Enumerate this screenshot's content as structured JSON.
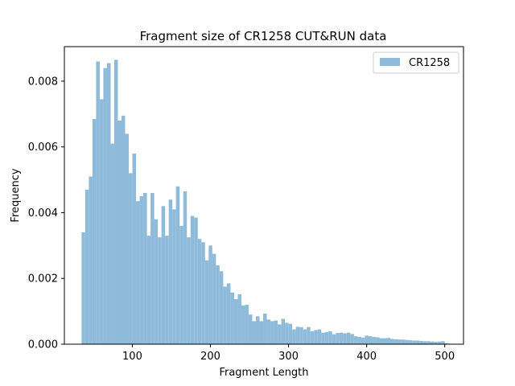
{
  "chart_data": {
    "type": "bar",
    "title": "Fragment size of CR1258 CUT&RUN data",
    "xlabel": "Fragment Length",
    "ylabel": "Frequency",
    "xlim": [
      13,
      524
    ],
    "ylim": [
      0,
      0.00905
    ],
    "xticks": [
      100,
      200,
      300,
      400,
      500
    ],
    "yticks": [
      0,
      0.002,
      0.004,
      0.006,
      0.008
    ],
    "ytick_labels": [
      "0.000",
      "0.002",
      "0.004",
      "0.006",
      "0.008"
    ],
    "bin_start": 35,
    "bin_width": 4.65,
    "legend_position": "top-right",
    "grid": false,
    "color": "#8fbbdb",
    "series": [
      {
        "name": "CR1258",
        "values": [
          0.0034,
          0.0047,
          0.0051,
          0.00685,
          0.0086,
          0.00745,
          0.0084,
          0.00855,
          0.0061,
          0.00865,
          0.0068,
          0.00695,
          0.0064,
          0.0052,
          0.0058,
          0.00435,
          0.0045,
          0.0046,
          0.0033,
          0.0046,
          0.0038,
          0.00325,
          0.0042,
          0.0033,
          0.0044,
          0.0041,
          0.0048,
          0.0036,
          0.00465,
          0.00325,
          0.0039,
          0.00385,
          0.0032,
          0.0031,
          0.00255,
          0.003,
          0.00275,
          0.0024,
          0.00222,
          0.00175,
          0.00185,
          0.00157,
          0.00137,
          0.00152,
          0.00118,
          0.0012,
          0.0009,
          0.0007,
          0.00085,
          0.0007,
          0.00093,
          0.00075,
          0.0007,
          0.00072,
          0.0006,
          0.00077,
          0.00065,
          0.00062,
          0.00045,
          0.00053,
          0.00052,
          0.00045,
          0.00052,
          0.00039,
          0.00043,
          0.00045,
          0.00035,
          0.00037,
          0.00039,
          0.0003,
          0.00034,
          0.00035,
          0.00033,
          0.00035,
          0.00031,
          0.00024,
          0.00022,
          0.0002,
          0.00026,
          0.00024,
          0.00022,
          0.00021,
          0.00018,
          0.00018,
          0.00019,
          0.00016,
          0.00015,
          0.00014,
          0.00014,
          0.00013,
          0.00012,
          0.00011,
          0.00011,
          0.0001,
          9e-05,
          9e-05,
          8e-05,
          7e-05,
          8e-05,
          9e-05,
          3e-05
        ]
      }
    ]
  }
}
